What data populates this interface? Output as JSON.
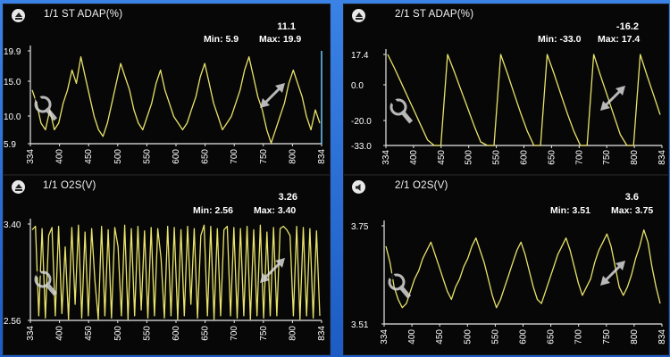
{
  "colors": {
    "trace": "#e8e36a",
    "axis": "#e8e8e8",
    "panel_bg": "#070707",
    "frame_bg": "#2b6fd3",
    "text": "#ffffff"
  },
  "panels": [
    {
      "title": "1/1 ST ADAP(%)",
      "current": "11.1",
      "min_label": "Min: 5.9",
      "max_label": "Max: 19.9",
      "mode_icon": "eject-icon",
      "y_ticks": [
        "19.9",
        "15.0",
        "10.0",
        "5.9"
      ],
      "x_ticks": [
        "334",
        "400",
        "450",
        "500",
        "550",
        "600",
        "650",
        "700",
        "750",
        "800",
        "834"
      ],
      "chart_data": {
        "type": "line",
        "series": [
          {
            "values": [
              14,
              12,
              9,
              8,
              11,
              8,
              9,
              12,
              14,
              17,
              15,
              19,
              16,
              13,
              10,
              8,
              7,
              9,
              12,
              15,
              18,
              16,
              14,
              11,
              9,
              8,
              10,
              12,
              15,
              17,
              14,
              12,
              10,
              9,
              8,
              9,
              11,
              13,
              16,
              18,
              15,
              12,
              10,
              8,
              9,
              10,
              12,
              14,
              17,
              19,
              16,
              13,
              11,
              8,
              6,
              8,
              10,
              12,
              15,
              17,
              15,
              13,
              10,
              8,
              11,
              9
            ]
          }
        ],
        "ylim": [
          5.9,
          19.9
        ]
      },
      "overlay_icons": [
        "wrench-icon",
        "resize-arrows-icon"
      ]
    },
    {
      "title": "2/1 ST ADAP(%)",
      "current": "-16.2",
      "min_label": "Min: -33.0",
      "max_label": "Max: 17.4",
      "mode_icon": "eject-icon",
      "y_ticks": [
        "17.4",
        "0.0",
        "-20.0",
        "-33.0"
      ],
      "x_ticks": [
        "334",
        "400",
        "450",
        "500",
        "550",
        "600",
        "650",
        "700",
        "750",
        "800",
        "834"
      ],
      "chart_data": {
        "type": "line",
        "series": [
          {
            "values": [
              17.4,
              10,
              2,
              -6,
              -14,
              -22,
              -30,
              -33,
              -33,
              17.4,
              8,
              -2,
              -12,
              -22,
              -31,
              -33,
              -33,
              17.4,
              7,
              -4,
              -15,
              -25,
              -33,
              -33,
              17.4,
              7,
              -4,
              -15,
              -25,
              -33,
              -33,
              17.4,
              6,
              -5,
              -16,
              -27,
              -33,
              -33,
              17.4,
              6,
              -5,
              -16
            ]
          }
        ],
        "ylim": [
          -33,
          17.4
        ]
      },
      "overlay_icons": [
        "wrench-icon",
        "resize-arrows-icon"
      ]
    },
    {
      "title": "1/1 O2S(V)",
      "current": "3.26",
      "min_label": "Min: 2.56",
      "max_label": "Max: 3.40",
      "mode_icon": "eject-icon",
      "y_ticks": [
        "3.40",
        "2.56"
      ],
      "x_ticks": [
        "334",
        "400",
        "450",
        "500",
        "550",
        "600",
        "650",
        "700",
        "750",
        "800",
        "834"
      ],
      "chart_data": {
        "type": "line",
        "series": [
          {
            "values": [
              3.35,
              3.38,
              2.6,
              3.36,
              2.58,
              3.3,
              3.37,
              2.6,
              3.38,
              2.62,
              3.2,
              2.57,
              3.37,
              2.7,
              3.39,
              2.58,
              3.33,
              2.6,
              3.36,
              2.9,
              2.57,
              3.38,
              2.6,
              3.35,
              2.58,
              3.37,
              3.2,
              2.6,
              3.39,
              2.57,
              3.36,
              2.6,
              3.38,
              2.65,
              3.34,
              2.58,
              3.37,
              2.6,
              3.36,
              3.1,
              2.58,
              3.38,
              2.6,
              3.37,
              2.57,
              3.35,
              2.6,
              3.38,
              2.7,
              3.36,
              2.58,
              3.3,
              3.39,
              2.6,
              3.38,
              2.57,
              3.36,
              2.6,
              3.35,
              3.38,
              2.6,
              3.37,
              2.58,
              3.36,
              2.6,
              3.38,
              2.57,
              3.35,
              2.6,
              3.39,
              2.58,
              3.33,
              2.6,
              3.37,
              2.6,
              3.36,
              3.38,
              3.35,
              3.3,
              2.6,
              3.38,
              2.57,
              3.37,
              2.6,
              3.36,
              2.58,
              3.34,
              2.6
            ]
          }
        ],
        "ylim": [
          2.56,
          3.4
        ]
      },
      "overlay_icons": [
        "wrench-icon",
        "resize-arrows-icon"
      ]
    },
    {
      "title": "2/1 O2S(V)",
      "current": "3.6",
      "min_label": "Min: 3.51",
      "max_label": "Max: 3.75",
      "mode_icon": "speaker-icon",
      "y_ticks": [
        "3.75",
        "3.51"
      ],
      "x_ticks": [
        "334",
        "400",
        "450",
        "500",
        "550",
        "600",
        "650",
        "700",
        "750",
        "800",
        "834"
      ],
      "chart_data": {
        "type": "line",
        "series": [
          {
            "values": [
              3.7,
              3.66,
              3.6,
              3.57,
              3.55,
              3.56,
              3.59,
              3.62,
              3.64,
              3.67,
              3.69,
              3.71,
              3.68,
              3.65,
              3.62,
              3.59,
              3.57,
              3.6,
              3.62,
              3.65,
              3.67,
              3.7,
              3.72,
              3.69,
              3.66,
              3.62,
              3.58,
              3.55,
              3.57,
              3.6,
              3.63,
              3.66,
              3.69,
              3.71,
              3.68,
              3.64,
              3.6,
              3.57,
              3.56,
              3.59,
              3.62,
              3.65,
              3.68,
              3.7,
              3.72,
              3.69,
              3.65,
              3.61,
              3.58,
              3.6,
              3.62,
              3.66,
              3.69,
              3.71,
              3.73,
              3.7,
              3.65,
              3.6,
              3.58,
              3.6,
              3.63,
              3.67,
              3.7,
              3.74,
              3.71,
              3.65,
              3.6,
              3.56
            ]
          }
        ],
        "ylim": [
          3.51,
          3.75
        ]
      },
      "overlay_icons": [
        "wrench-icon",
        "resize-arrows-icon"
      ]
    }
  ]
}
